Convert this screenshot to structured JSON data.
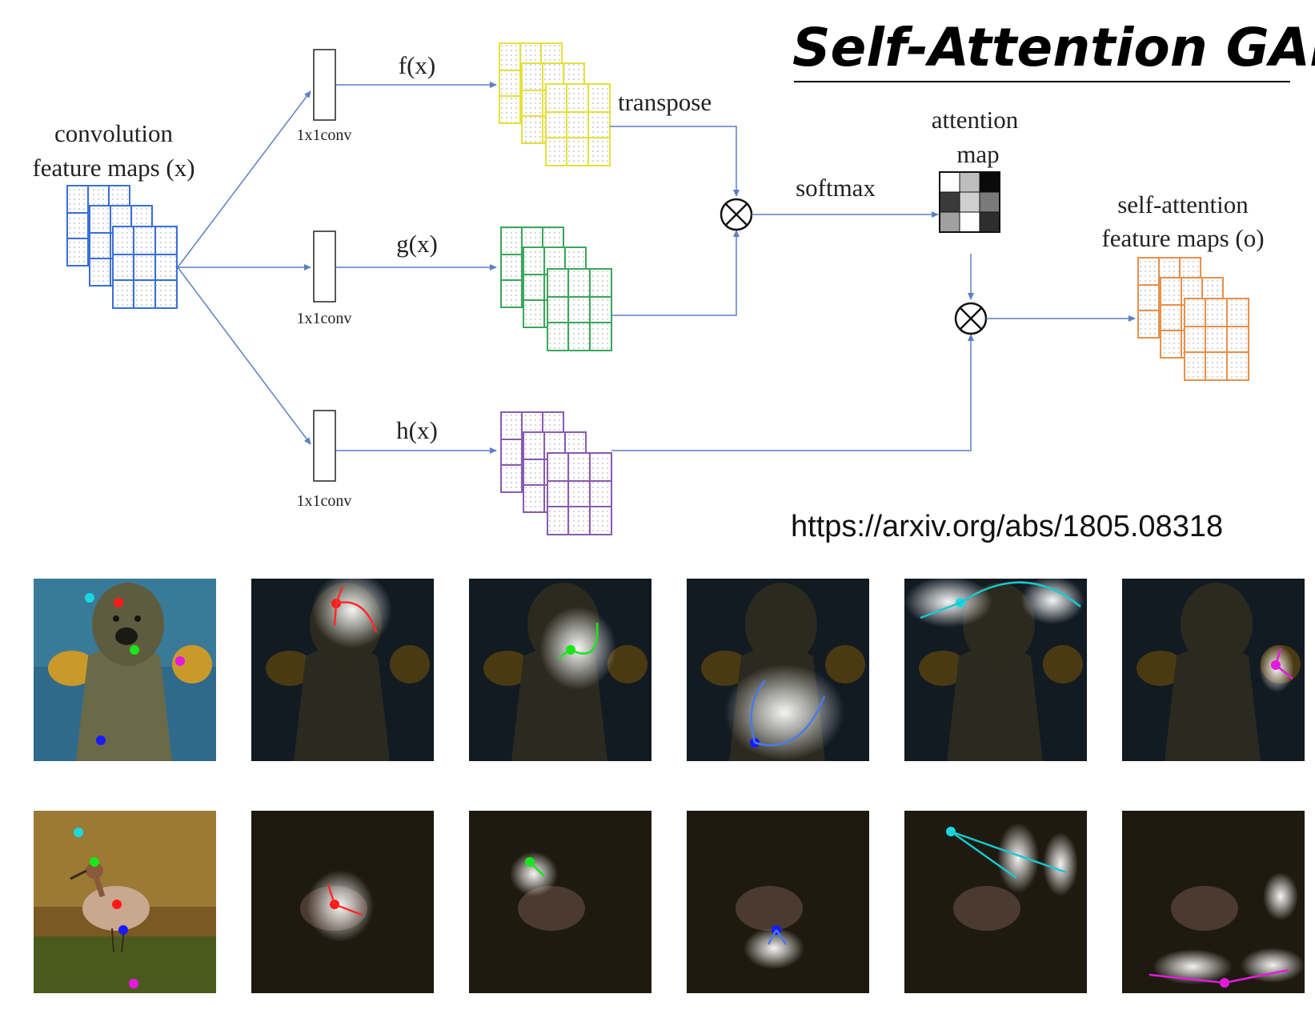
{
  "title": "Self-Attention GAN",
  "url": "https://arxiv.org/abs/1805.08318",
  "input_label": [
    "convolution",
    "feature maps (x)"
  ],
  "output_label": [
    "self-attention",
    "feature maps (o)"
  ],
  "attention_label": [
    "attention",
    "map"
  ],
  "softmax_label": "softmax",
  "transpose_label": "transpose",
  "branches": [
    {
      "func": "f(x)",
      "conv": "1x1conv",
      "color": "#e6e03c"
    },
    {
      "func": "g(x)",
      "conv": "1x1conv",
      "color": "#3aa75a"
    },
    {
      "func": "h(x)",
      "conv": "1x1conv",
      "color": "#8a5ab0"
    }
  ],
  "colors": {
    "input_maps": "#3a6fd8",
    "output_maps": "#e8904a",
    "arrow": "#5b7fc4"
  },
  "attention_map_shades": [
    [
      "#ffffff",
      "#bdbdbd",
      "#0a0a0a"
    ],
    [
      "#3a3a3a",
      "#cfcfcf",
      "#7a7a7a"
    ],
    [
      "#a0a0a0",
      "#ffffff",
      "#2e2e2e"
    ]
  ],
  "image_rows": [
    {
      "subject": "dog",
      "panels": [
        {
          "type": "original",
          "points": [
            "cyan",
            "red",
            "green",
            "magenta",
            "blue"
          ]
        },
        {
          "type": "attention",
          "query_point": "red"
        },
        {
          "type": "attention",
          "query_point": "green"
        },
        {
          "type": "attention",
          "query_point": "blue"
        },
        {
          "type": "attention",
          "query_point": "cyan"
        },
        {
          "type": "attention",
          "query_point": "magenta"
        }
      ]
    },
    {
      "subject": "bird",
      "panels": [
        {
          "type": "original",
          "points": [
            "cyan",
            "green",
            "red",
            "blue",
            "magenta"
          ]
        },
        {
          "type": "attention",
          "query_point": "red"
        },
        {
          "type": "attention",
          "query_point": "green"
        },
        {
          "type": "attention",
          "query_point": "blue"
        },
        {
          "type": "attention",
          "query_point": "cyan"
        },
        {
          "type": "attention",
          "query_point": "magenta"
        }
      ]
    }
  ],
  "point_colors": {
    "cyan": "#19d8e0",
    "red": "#ff1a1a",
    "green": "#19e619",
    "magenta": "#e619e0",
    "blue": "#1a1aff"
  }
}
